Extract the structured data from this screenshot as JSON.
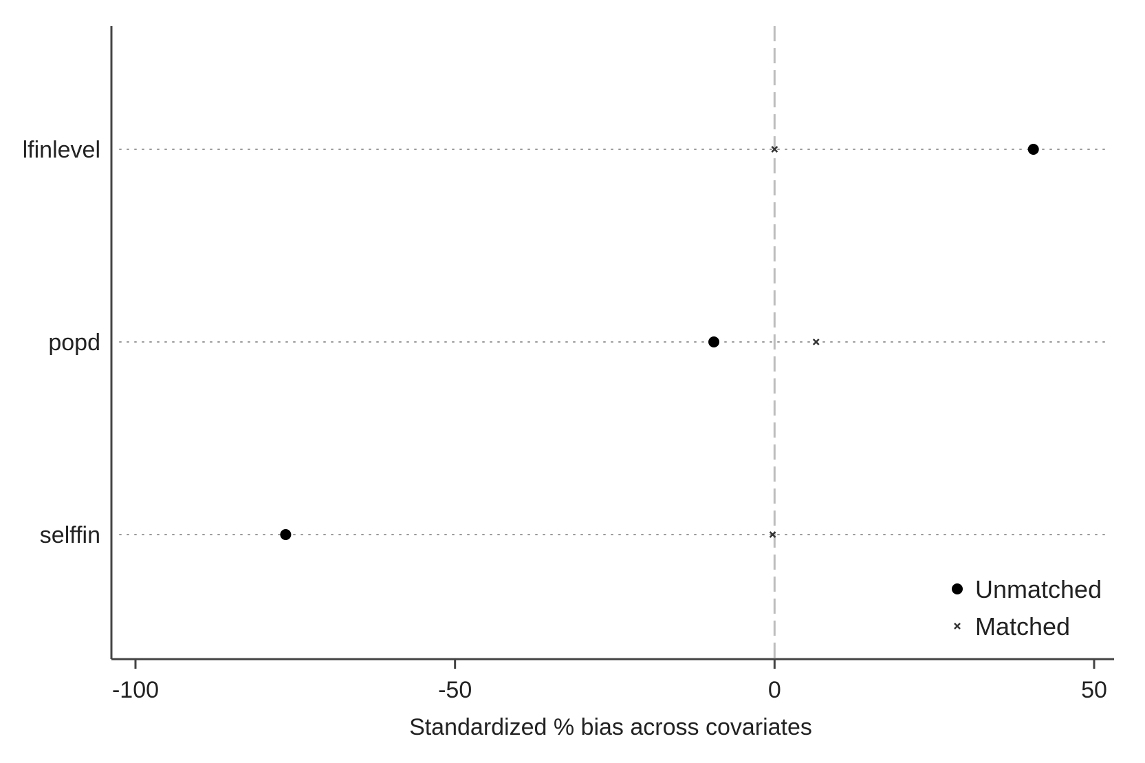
{
  "chart_data": {
    "type": "scatter",
    "xlabel": "Standardized % bias across covariates",
    "xlim": [
      -104,
      53
    ],
    "xticks": [
      -100,
      -50,
      0,
      50
    ],
    "xtick_labels": [
      "-100",
      "-50",
      "0",
      "50"
    ],
    "categories": [
      "lfinlevel",
      "popd",
      "selffin"
    ],
    "reference_line_x": 0,
    "series": [
      {
        "name": "Unmatched",
        "marker": "circle",
        "values": [
          40.5,
          -9.5,
          -76.5
        ]
      },
      {
        "name": "Matched",
        "marker": "x",
        "values": [
          0.0,
          6.5,
          -0.3
        ]
      }
    ],
    "legend_position": "bottom-right",
    "grid": "dotted horizontal lines at each category",
    "colors": {
      "marker": "#000000",
      "axis": "#444444",
      "grid": "#9a9a9a",
      "refline": "#bdbdbd"
    }
  }
}
